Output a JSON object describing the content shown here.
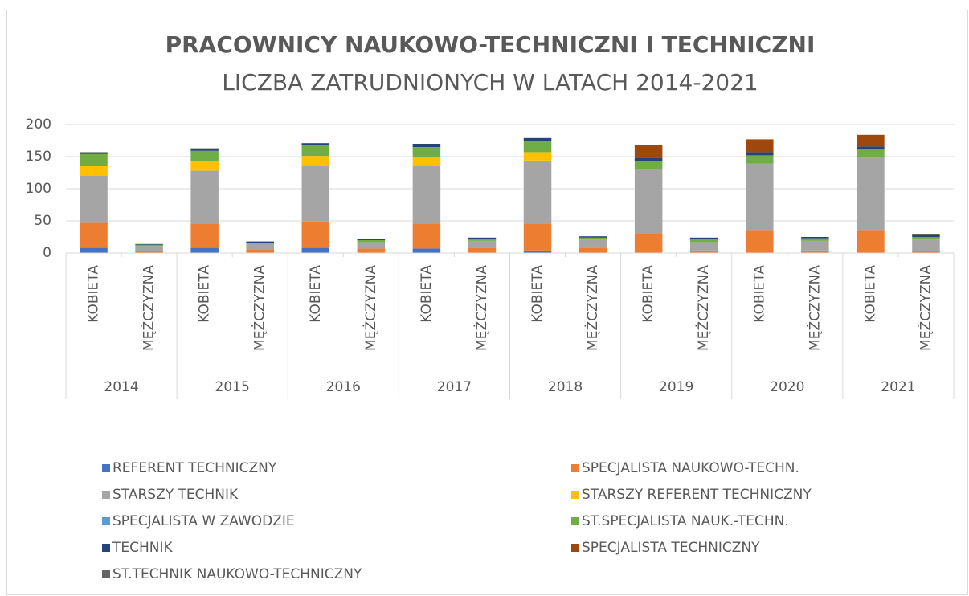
{
  "chart_data": {
    "type": "stacked_bar",
    "title": "PRACOWNICY NAUKOWO-TECHNICZNI I TECHNICZNI",
    "subtitle": "LICZBA ZATRUDNIONYCH W LATACH 2014-2021",
    "categories": [
      "KOBIETA",
      "MĘŻCZYZNA",
      "KOBIETA",
      "MĘŻCZYZNA",
      "KOBIETA",
      "MĘŻCZYZNA",
      "KOBIETA",
      "MĘŻCZYZNA",
      "KOBIETA",
      "MĘŻCZYZNA",
      "KOBIETA",
      "MĘŻCZYZNA",
      "KOBIETA",
      "MĘŻCZYZNA",
      "KOBIETA",
      "MĘŻCZYZNA"
    ],
    "groups": [
      "2014",
      "2015",
      "2016",
      "2017",
      "2018",
      "2019",
      "2020",
      "2021"
    ],
    "ylim": [
      0,
      200
    ],
    "yticks": [
      0,
      50,
      100,
      150,
      200
    ],
    "grid": true,
    "series": [
      {
        "name": "REFERENT TECHNICZNY",
        "color": "#4472c4",
        "values": [
          8,
          0,
          8,
          0,
          8,
          0,
          7,
          0,
          4,
          0,
          0,
          0,
          0,
          0,
          0,
          0
        ]
      },
      {
        "name": "SPECJALISTA NAUKOWO-TECHN.",
        "color": "#ed7d31",
        "values": [
          39,
          3,
          38,
          6,
          41,
          7,
          39,
          8,
          42,
          8,
          31,
          4,
          36,
          4,
          36,
          3
        ]
      },
      {
        "name": "STARSZY TECHNIK",
        "color": "#a5a5a5",
        "values": [
          73,
          8,
          82,
          8,
          86,
          10,
          89,
          11,
          98,
          13,
          99,
          13,
          103,
          15,
          114,
          18
        ]
      },
      {
        "name": "STARSZY REFERENT TECHNICZNY",
        "color": "#ffc000",
        "values": [
          15,
          0,
          15,
          0,
          16,
          0,
          14,
          0,
          13,
          0,
          0,
          0,
          0,
          0,
          0,
          0
        ]
      },
      {
        "name": "SPECJALISTA W ZAWODZIE",
        "color": "#5b9bd5",
        "values": [
          0,
          0,
          0,
          0,
          0,
          0,
          0,
          0,
          0,
          0,
          0,
          0,
          0,
          0,
          0,
          0
        ]
      },
      {
        "name": "ST.SPECJALISTA NAUK.-TECHN.",
        "color": "#70ad47",
        "values": [
          19,
          2,
          16,
          2,
          17,
          3,
          16,
          3,
          17,
          3,
          13,
          5,
          13,
          4,
          11,
          4
        ]
      },
      {
        "name": "TECHNIK",
        "color": "#264478",
        "values": [
          2,
          1,
          3,
          2,
          3,
          2,
          5,
          2,
          5,
          2,
          5,
          2,
          5,
          2,
          5,
          3
        ]
      },
      {
        "name": "SPECJALISTA TECHNICZNY",
        "color": "#9e480e",
        "values": [
          0,
          0,
          0,
          0,
          0,
          0,
          0,
          0,
          0,
          0,
          20,
          0,
          20,
          0,
          18,
          0
        ]
      },
      {
        "name": "ST.TECHNIK NAUKOWO-TECHNICZNY",
        "color": "#636363",
        "values": [
          1,
          0,
          1,
          0,
          0,
          0,
          0,
          0,
          0,
          0,
          0,
          0,
          0,
          0,
          0,
          2
        ]
      }
    ]
  }
}
